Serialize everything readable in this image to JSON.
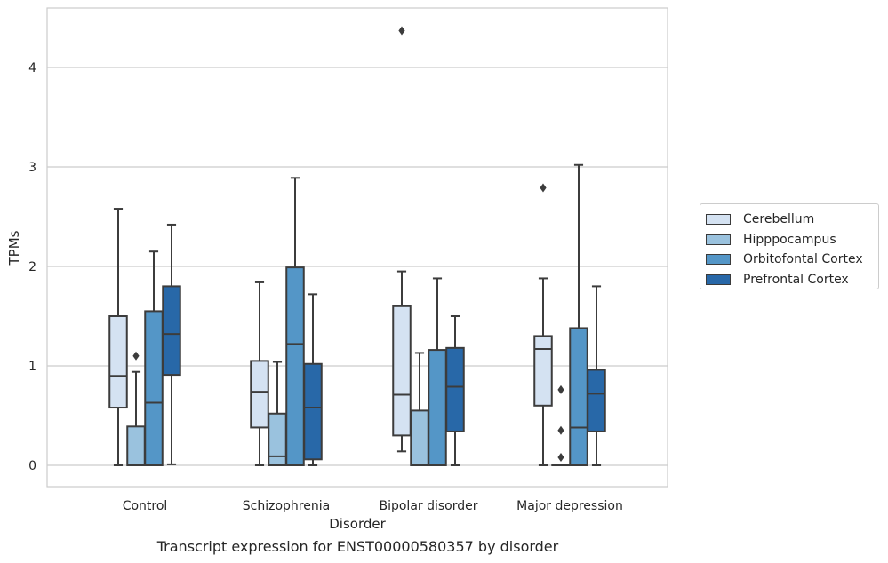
{
  "caption": "Transcript expression for ENST00000580357 by disorder",
  "chart_data": {
    "type": "box",
    "title": "",
    "xlabel": "Disorder",
    "ylabel": "TPMs",
    "ylim": [
      -0.21,
      4.6
    ],
    "yticks": [
      0,
      1,
      2,
      3,
      4
    ],
    "grid": "horizontal",
    "legend_position": "right",
    "categories": [
      "Control",
      "Schizophrenia",
      "Bipolar disorder",
      "Major depression"
    ],
    "series": [
      {
        "name": "Cerebellum",
        "color": "#d4e2f2",
        "boxes": [
          {
            "min": 0.0,
            "q1": 0.58,
            "median": 0.9,
            "q3": 1.5,
            "max": 2.58,
            "outliers": []
          },
          {
            "min": 0.0,
            "q1": 0.38,
            "median": 0.74,
            "q3": 1.05,
            "max": 1.84,
            "outliers": []
          },
          {
            "min": 0.14,
            "q1": 0.3,
            "median": 0.71,
            "q3": 1.6,
            "max": 1.95,
            "outliers": [
              4.37
            ]
          },
          {
            "min": 0.0,
            "q1": 0.6,
            "median": 1.17,
            "q3": 1.3,
            "max": 1.88,
            "outliers": [
              2.79
            ]
          }
        ]
      },
      {
        "name": "Hipppocampus",
        "color": "#9ac2de",
        "boxes": [
          {
            "min": 0.0,
            "q1": 0.0,
            "median": 0.0,
            "q3": 0.39,
            "max": 0.94,
            "outliers": [
              1.1
            ]
          },
          {
            "min": 0.0,
            "q1": 0.0,
            "median": 0.09,
            "q3": 0.52,
            "max": 1.04,
            "outliers": []
          },
          {
            "min": 0.0,
            "q1": 0.0,
            "median": 0.0,
            "q3": 0.55,
            "max": 1.13,
            "outliers": []
          },
          {
            "min": 0.0,
            "q1": 0.0,
            "median": 0.0,
            "q3": 0.0,
            "max": 0.0,
            "outliers": [
              0.76,
              0.35,
              0.08
            ]
          }
        ]
      },
      {
        "name": "Orbitofontal Cortex",
        "color": "#5496c7",
        "boxes": [
          {
            "min": 0.0,
            "q1": 0.0,
            "median": 0.63,
            "q3": 1.55,
            "max": 2.15,
            "outliers": []
          },
          {
            "min": 0.0,
            "q1": 0.0,
            "median": 1.22,
            "q3": 1.99,
            "max": 2.89,
            "outliers": []
          },
          {
            "min": 0.0,
            "q1": 0.0,
            "median": 0.0,
            "q3": 1.16,
            "max": 1.88,
            "outliers": []
          },
          {
            "min": 0.0,
            "q1": 0.0,
            "median": 0.38,
            "q3": 1.38,
            "max": 3.02,
            "outliers": []
          }
        ]
      },
      {
        "name": "Prefrontal Cortex",
        "color": "#2868a8",
        "boxes": [
          {
            "min": 0.01,
            "q1": 0.91,
            "median": 1.32,
            "q3": 1.8,
            "max": 2.42,
            "outliers": []
          },
          {
            "min": 0.0,
            "q1": 0.06,
            "median": 0.58,
            "q3": 1.02,
            "max": 1.72,
            "outliers": []
          },
          {
            "min": 0.0,
            "q1": 0.34,
            "median": 0.79,
            "q3": 1.18,
            "max": 1.5,
            "outliers": []
          },
          {
            "min": 0.0,
            "q1": 0.34,
            "median": 0.72,
            "q3": 0.96,
            "max": 1.8,
            "outliers": []
          }
        ]
      }
    ]
  }
}
